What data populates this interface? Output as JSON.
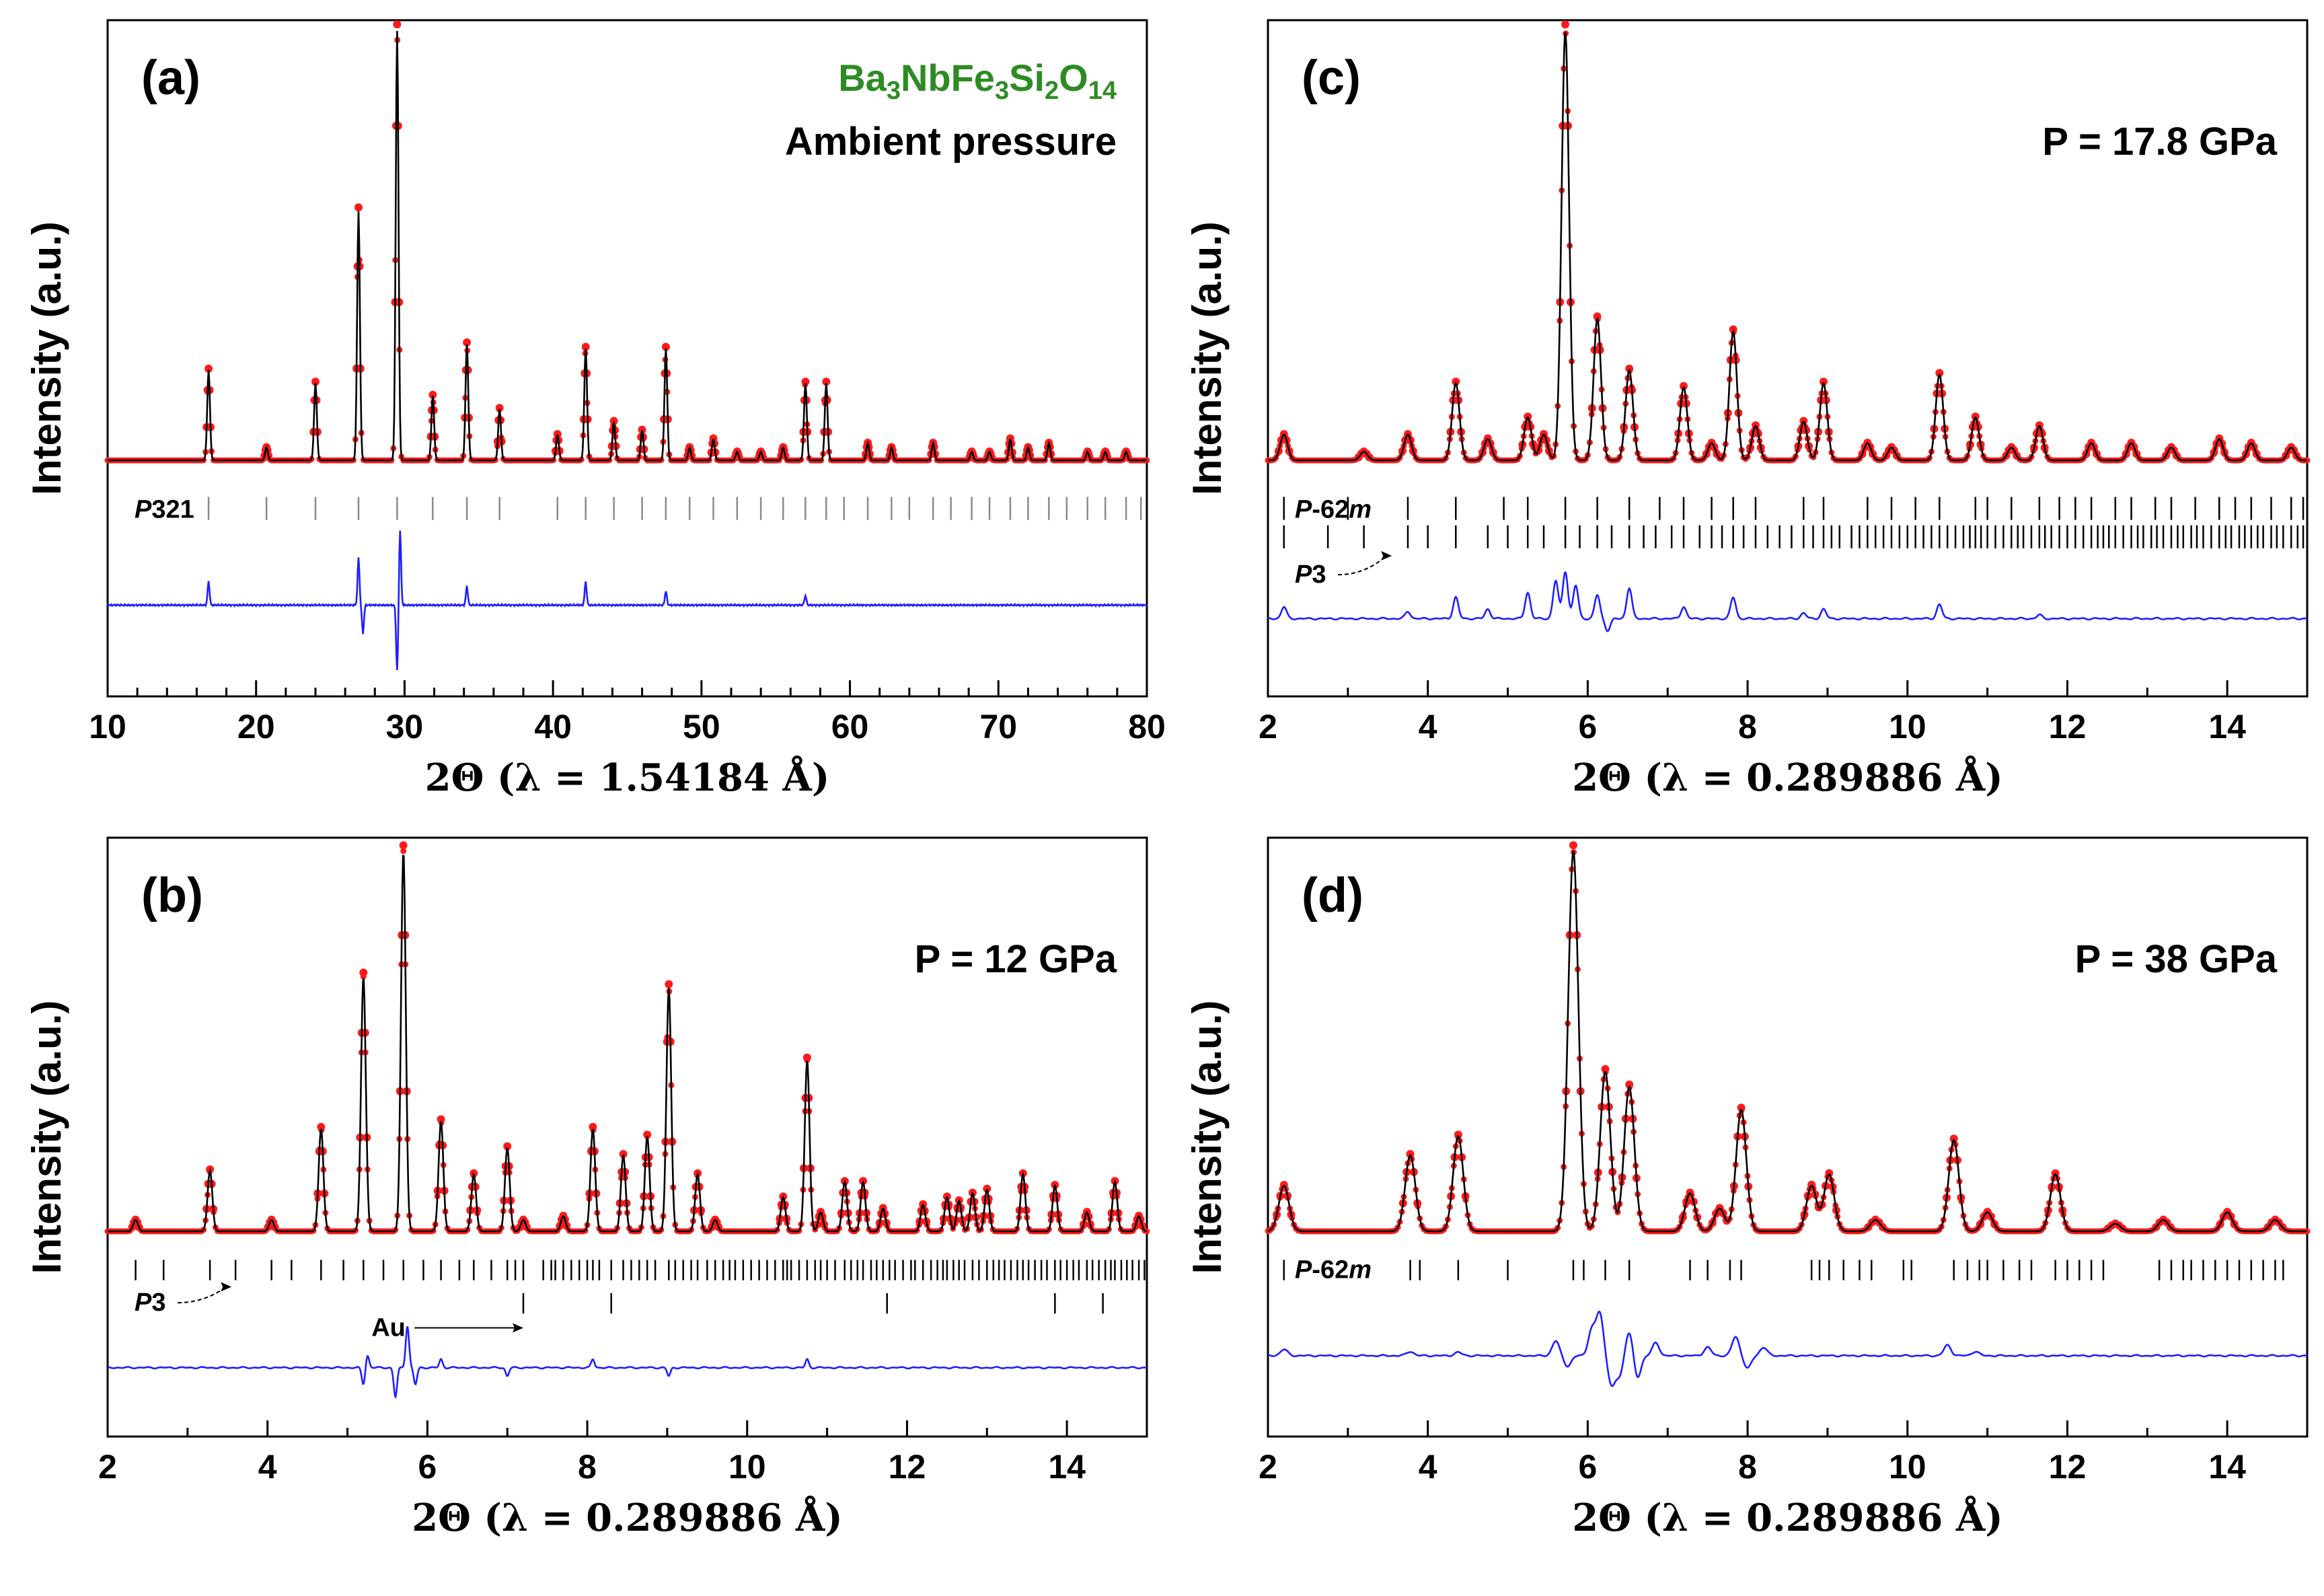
{
  "chart_data": [
    {
      "id": "a",
      "type": "line",
      "panel_label": "(a)",
      "title_compound": [
        {
          "t": "Ba",
          "sub": false
        },
        {
          "t": "3",
          "sub": true
        },
        {
          "t": "NbFe",
          "sub": false
        },
        {
          "t": "3",
          "sub": true
        },
        {
          "t": "Si",
          "sub": false
        },
        {
          "t": "2",
          "sub": true
        },
        {
          "t": "O",
          "sub": false
        },
        {
          "t": "14",
          "sub": true
        }
      ],
      "condition": "Ambient pressure",
      "xlabel": "2Θ (λ = 1.54184 Å)",
      "ylabel": "Intensity (a.u.)",
      "xlim": [
        10,
        80
      ],
      "xticks": [
        10,
        20,
        30,
        40,
        50,
        60,
        70,
        80
      ],
      "xtick_labels": [
        "10",
        "20",
        "30",
        "40",
        "50",
        "60",
        "70",
        "80"
      ],
      "minor_step": 2,
      "baseline": 0.03,
      "fwhm": 0.22,
      "peaks": [
        [
          16.8,
          0.21
        ],
        [
          20.7,
          0.03
        ],
        [
          24.0,
          0.18
        ],
        [
          26.9,
          0.58
        ],
        [
          29.5,
          1.0
        ],
        [
          31.9,
          0.15
        ],
        [
          34.2,
          0.27
        ],
        [
          36.4,
          0.12
        ],
        [
          40.3,
          0.06
        ],
        [
          42.2,
          0.26
        ],
        [
          44.1,
          0.09
        ],
        [
          46.0,
          0.07
        ],
        [
          47.6,
          0.26
        ],
        [
          49.2,
          0.03
        ],
        [
          50.8,
          0.05
        ],
        [
          52.4,
          0.02
        ],
        [
          54.0,
          0.02
        ],
        [
          55.5,
          0.03
        ],
        [
          57.0,
          0.18
        ],
        [
          58.4,
          0.18
        ],
        [
          61.2,
          0.04
        ],
        [
          62.8,
          0.03
        ],
        [
          65.6,
          0.04
        ],
        [
          68.2,
          0.02
        ],
        [
          69.4,
          0.02
        ],
        [
          70.8,
          0.05
        ],
        [
          72.0,
          0.03
        ],
        [
          73.4,
          0.04
        ],
        [
          76.0,
          0.02
        ],
        [
          77.2,
          0.02
        ],
        [
          78.6,
          0.02
        ]
      ],
      "reflection_rows": [
        {
          "label": "P321",
          "label_html": "italic-P",
          "positions": [
            16.8,
            20.7,
            24.0,
            26.9,
            29.5,
            31.9,
            34.2,
            36.4,
            40.3,
            42.2,
            44.1,
            46.0,
            47.6,
            49.2,
            50.8,
            52.4,
            54.0,
            55.5,
            57.0,
            58.4,
            59.6,
            61.2,
            62.8,
            64.0,
            65.6,
            66.8,
            68.2,
            69.4,
            70.8,
            72.0,
            73.4,
            74.6,
            76.0,
            77.2,
            78.6,
            79.6
          ]
        }
      ],
      "difference_features": [
        [
          16.8,
          0.5
        ],
        [
          26.9,
          1.0
        ],
        [
          27.2,
          -0.6
        ],
        [
          29.5,
          -1.4
        ],
        [
          29.7,
          1.6
        ],
        [
          34.2,
          0.4
        ],
        [
          42.2,
          0.5
        ],
        [
          47.6,
          0.3
        ],
        [
          57.0,
          0.2
        ]
      ],
      "annotations": []
    },
    {
      "id": "b",
      "type": "line",
      "panel_label": "(b)",
      "condition": "P = 12 GPa",
      "xlabel": "2Θ (λ = 0.289886 Å)",
      "ylabel": "Intensity (a.u.)",
      "xlim": [
        2,
        15
      ],
      "xticks": [
        2,
        4,
        6,
        8,
        10,
        12,
        14
      ],
      "xtick_labels": [
        "2",
        "4",
        "6",
        "8",
        "10",
        "12",
        "14"
      ],
      "minor_step": 1,
      "baseline": 0.02,
      "fwhm": 0.07,
      "peaks": [
        [
          2.35,
          0.03
        ],
        [
          3.28,
          0.16
        ],
        [
          4.05,
          0.03
        ],
        [
          4.67,
          0.27
        ],
        [
          5.2,
          0.67
        ],
        [
          5.7,
          1.0
        ],
        [
          6.17,
          0.29
        ],
        [
          6.58,
          0.15
        ],
        [
          7.0,
          0.22
        ],
        [
          7.2,
          0.03
        ],
        [
          7.7,
          0.04
        ],
        [
          8.07,
          0.27
        ],
        [
          8.45,
          0.2
        ],
        [
          8.75,
          0.25
        ],
        [
          9.02,
          0.64
        ],
        [
          9.38,
          0.15
        ],
        [
          9.6,
          0.03
        ],
        [
          10.45,
          0.09
        ],
        [
          10.75,
          0.45
        ],
        [
          10.92,
          0.05
        ],
        [
          11.22,
          0.13
        ],
        [
          11.45,
          0.13
        ],
        [
          11.7,
          0.06
        ],
        [
          12.2,
          0.07
        ],
        [
          12.5,
          0.09
        ],
        [
          12.65,
          0.08
        ],
        [
          12.82,
          0.1
        ],
        [
          13.0,
          0.11
        ],
        [
          13.45,
          0.15
        ],
        [
          13.85,
          0.12
        ],
        [
          14.25,
          0.05
        ],
        [
          14.6,
          0.13
        ],
        [
          14.9,
          0.04
        ]
      ],
      "reflection_rows": [
        {
          "label": "P3",
          "label_html": "italic-P",
          "positions": [
            2.35,
            2.7,
            3.28,
            3.6,
            4.05,
            4.3,
            4.67,
            4.95,
            5.2,
            5.45,
            5.7,
            5.95,
            6.17,
            6.4,
            6.58,
            6.8,
            7.0,
            7.1,
            7.2,
            7.45,
            7.55,
            7.6,
            7.7,
            7.8,
            7.9,
            8.0,
            8.07,
            8.15,
            8.3,
            8.45,
            8.55,
            8.65,
            8.75,
            8.85,
            9.02,
            9.1,
            9.2,
            9.3,
            9.38,
            9.5,
            9.6,
            9.7,
            9.78,
            9.85,
            9.95,
            10.05,
            10.15,
            10.25,
            10.35,
            10.45,
            10.5,
            10.55,
            10.65,
            10.75,
            10.85,
            10.92,
            11.0,
            11.1,
            11.22,
            11.3,
            11.38,
            11.45,
            11.55,
            11.62,
            11.7,
            11.78,
            11.85,
            11.95,
            12.05,
            12.1,
            12.2,
            12.3,
            12.38,
            12.45,
            12.5,
            12.58,
            12.65,
            12.72,
            12.82,
            12.9,
            13.0,
            13.08,
            13.15,
            13.22,
            13.3,
            13.38,
            13.45,
            13.52,
            13.6,
            13.68,
            13.75,
            13.85,
            13.92,
            14.0,
            14.08,
            14.15,
            14.25,
            14.32,
            14.4,
            14.48,
            14.55,
            14.6,
            14.68,
            14.75,
            14.82,
            14.9,
            14.97
          ]
        },
        {
          "label": "Au",
          "label_html": "plain",
          "positions": [
            7.2,
            8.3,
            11.75,
            13.85,
            14.45
          ]
        }
      ],
      "difference_features": [
        [
          5.2,
          -0.4
        ],
        [
          5.25,
          0.3
        ],
        [
          5.6,
          -0.7
        ],
        [
          5.75,
          1.0
        ],
        [
          5.85,
          -0.4
        ],
        [
          6.17,
          0.2
        ],
        [
          7.0,
          -0.2
        ],
        [
          8.07,
          0.2
        ],
        [
          9.02,
          -0.2
        ],
        [
          10.75,
          0.2
        ]
      ],
      "annotations": [
        {
          "text": "P3",
          "italic_first": true,
          "arrow_to_x": 3.55,
          "row": 0
        },
        {
          "text": "Au",
          "italic_first": false,
          "arrow_to_x": 7.2,
          "row": 1
        }
      ]
    },
    {
      "id": "c",
      "type": "line",
      "panel_label": "(c)",
      "condition": "P = 17.8 GPa",
      "xlabel": "2Θ (λ = 0.289886 Å)",
      "ylabel": "Intensity (a.u.)",
      "xlim": [
        2,
        15
      ],
      "xticks": [
        2,
        4,
        6,
        8,
        10,
        12,
        14
      ],
      "xtick_labels": [
        "2",
        "4",
        "6",
        "8",
        "10",
        "12",
        "14"
      ],
      "minor_step": 1,
      "baseline": 0.03,
      "fwhm": 0.11,
      "peaks": [
        [
          2.2,
          0.06
        ],
        [
          3.2,
          0.02
        ],
        [
          3.75,
          0.06
        ],
        [
          4.35,
          0.18
        ],
        [
          4.75,
          0.05
        ],
        [
          5.25,
          0.1
        ],
        [
          5.45,
          0.06
        ],
        [
          5.72,
          1.0
        ],
        [
          6.12,
          0.33
        ],
        [
          6.52,
          0.21
        ],
        [
          7.2,
          0.17
        ],
        [
          7.55,
          0.04
        ],
        [
          7.82,
          0.3
        ],
        [
          8.1,
          0.08
        ],
        [
          8.7,
          0.09
        ],
        [
          8.95,
          0.18
        ],
        [
          9.5,
          0.04
        ],
        [
          9.8,
          0.03
        ],
        [
          10.4,
          0.2
        ],
        [
          10.85,
          0.1
        ],
        [
          11.3,
          0.03
        ],
        [
          11.65,
          0.08
        ],
        [
          12.3,
          0.04
        ],
        [
          12.8,
          0.04
        ],
        [
          13.3,
          0.03
        ],
        [
          13.9,
          0.05
        ],
        [
          14.3,
          0.04
        ],
        [
          14.8,
          0.03
        ]
      ],
      "reflection_rows": [
        {
          "label": "P-62m",
          "label_html": "italic-P-m",
          "positions": [
            2.2,
            3.75,
            4.35,
            5.25,
            5.72,
            6.12,
            6.52,
            7.2,
            7.82,
            8.7,
            8.95,
            9.5,
            10.4,
            10.85,
            11.3,
            11.65,
            12.3,
            12.8,
            13.3,
            13.9,
            14.3,
            14.8,
            3.0,
            4.95,
            6.9,
            7.55,
            8.1,
            9.8,
            10.1,
            11.0,
            11.9,
            12.1,
            12.6,
            13.1,
            13.6,
            14.1,
            14.55,
            14.95
          ]
        },
        {
          "label": "P3",
          "label_html": "italic-P",
          "positions": [
            2.2,
            2.75,
            3.2,
            3.75,
            4.0,
            4.35,
            4.75,
            5.0,
            5.25,
            5.45,
            5.72,
            5.9,
            6.12,
            6.3,
            6.52,
            6.7,
            6.85,
            7.05,
            7.2,
            7.4,
            7.55,
            7.68,
            7.82,
            7.95,
            8.1,
            8.25,
            8.4,
            8.55,
            8.7,
            8.82,
            8.95,
            9.05,
            9.15,
            9.3,
            9.4,
            9.5,
            9.6,
            9.7,
            9.8,
            9.9,
            10.0,
            10.1,
            10.2,
            10.3,
            10.4,
            10.5,
            10.6,
            10.7,
            10.78,
            10.85,
            10.92,
            11.0,
            11.1,
            11.2,
            11.3,
            11.38,
            11.45,
            11.55,
            11.65,
            11.72,
            11.8,
            11.9,
            12.0,
            12.1,
            12.2,
            12.3,
            12.38,
            12.45,
            12.52,
            12.6,
            12.7,
            12.8,
            12.88,
            12.95,
            13.05,
            13.12,
            13.2,
            13.3,
            13.38,
            13.45,
            13.55,
            13.62,
            13.7,
            13.8,
            13.9,
            13.98,
            14.05,
            14.15,
            14.22,
            14.3,
            14.38,
            14.45,
            14.55,
            14.62,
            14.7,
            14.8,
            14.88,
            14.95
          ]
        }
      ],
      "difference_features": [
        [
          2.2,
          0.25
        ],
        [
          3.75,
          0.15
        ],
        [
          4.35,
          0.45
        ],
        [
          4.75,
          0.2
        ],
        [
          5.25,
          0.55
        ],
        [
          5.6,
          0.8
        ],
        [
          5.72,
          1.0
        ],
        [
          5.85,
          0.7
        ],
        [
          6.12,
          0.5
        ],
        [
          6.25,
          -0.25
        ],
        [
          6.52,
          0.65
        ],
        [
          7.2,
          0.25
        ],
        [
          7.82,
          0.45
        ],
        [
          8.7,
          0.12
        ],
        [
          8.95,
          0.2
        ],
        [
          10.4,
          0.3
        ],
        [
          11.65,
          0.08
        ]
      ],
      "annotations": [
        {
          "text": "P3",
          "italic_first": true,
          "arrow_to_x": 3.55,
          "row": 1
        }
      ]
    },
    {
      "id": "d",
      "type": "line",
      "panel_label": "(d)",
      "condition": "P = 38 GPa",
      "xlabel": "2Θ (λ = 0.289886 Å)",
      "ylabel": "Intensity (a.u.)",
      "xlim": [
        2,
        15
      ],
      "xticks": [
        2,
        4,
        6,
        8,
        10,
        12,
        14
      ],
      "xtick_labels": [
        "2",
        "4",
        "6",
        "8",
        "10",
        "12",
        "14"
      ],
      "minor_step": 1,
      "baseline": 0.02,
      "fwhm": 0.15,
      "peaks": [
        [
          2.2,
          0.12
        ],
        [
          3.78,
          0.2
        ],
        [
          4.38,
          0.25
        ],
        [
          5.82,
          1.0
        ],
        [
          6.22,
          0.42
        ],
        [
          6.52,
          0.38
        ],
        [
          7.28,
          0.1
        ],
        [
          7.65,
          0.06
        ],
        [
          7.92,
          0.32
        ],
        [
          8.8,
          0.12
        ],
        [
          9.02,
          0.15
        ],
        [
          9.6,
          0.03
        ],
        [
          10.58,
          0.24
        ],
        [
          11.0,
          0.05
        ],
        [
          11.85,
          0.15
        ],
        [
          12.6,
          0.02
        ],
        [
          13.2,
          0.03
        ],
        [
          14.0,
          0.05
        ],
        [
          14.6,
          0.03
        ]
      ],
      "reflection_rows": [
        {
          "label": "P-62m",
          "label_html": "italic-P-m",
          "positions": [
            2.2,
            3.78,
            3.9,
            4.38,
            5.0,
            5.82,
            5.95,
            6.22,
            6.52,
            7.28,
            7.5,
            7.78,
            7.92,
            8.8,
            8.9,
            9.02,
            9.2,
            9.4,
            9.55,
            9.95,
            10.05,
            10.58,
            10.75,
            10.9,
            11.0,
            11.2,
            11.4,
            11.55,
            11.85,
            12.0,
            12.15,
            12.3,
            12.45,
            13.15,
            13.3,
            13.45,
            13.55,
            13.7,
            13.85,
            14.0,
            14.15,
            14.3,
            14.45,
            14.6,
            14.7
          ]
        }
      ],
      "difference_features": [
        [
          2.2,
          0.15
        ],
        [
          3.78,
          0.1
        ],
        [
          4.38,
          0.08
        ],
        [
          5.6,
          0.35
        ],
        [
          5.75,
          -0.25
        ],
        [
          6.05,
          0.6
        ],
        [
          6.15,
          1.0
        ],
        [
          6.3,
          -0.7
        ],
        [
          6.4,
          -0.45
        ],
        [
          6.52,
          0.6
        ],
        [
          6.62,
          -0.55
        ],
        [
          6.85,
          0.3
        ],
        [
          7.5,
          0.2
        ],
        [
          7.85,
          0.45
        ],
        [
          8.0,
          -0.3
        ],
        [
          8.2,
          0.2
        ],
        [
          10.5,
          0.25
        ],
        [
          10.85,
          0.1
        ]
      ],
      "annotations": []
    }
  ],
  "colors": {
    "observed": "#ff1a1a",
    "calculated": "#000000",
    "difference": "#1f1fff",
    "compound": "#2e8b24",
    "text": "#000000",
    "frame": "#000000",
    "reflection_row_a": "#8a8a8a"
  }
}
